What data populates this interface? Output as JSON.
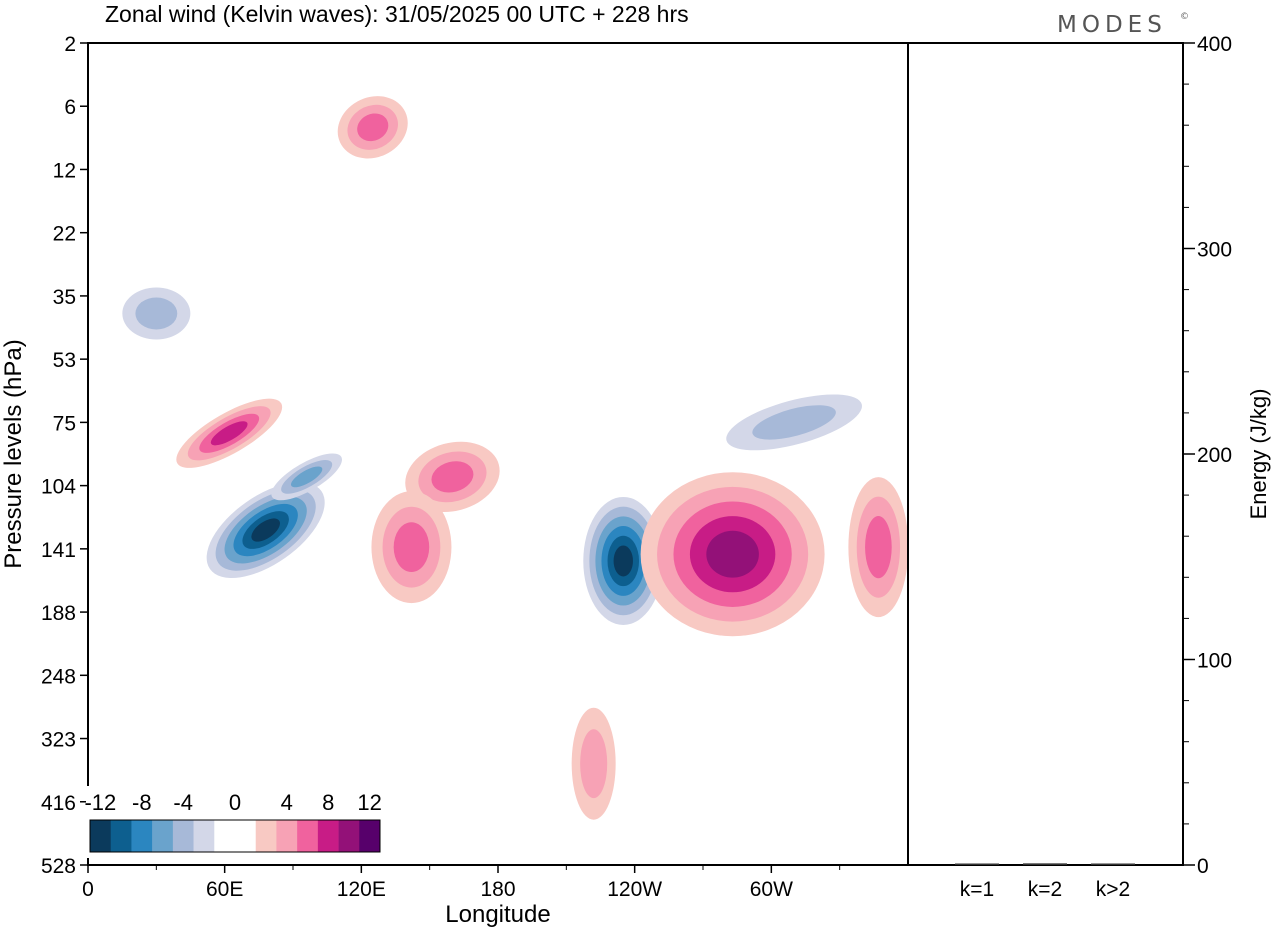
{
  "logo": {
    "text": "MODES",
    "mark": "©"
  },
  "colors": {
    "neg": [
      "#0b3a5c",
      "#0d5f8f",
      "#2b86c0",
      "#6aa3cc",
      "#a7b9d8",
      "#d3d7e8"
    ],
    "pos": [
      "#f8c9c3",
      "#f7a2b5",
      "#f0629e",
      "#c81c86",
      "#931178",
      "#57006b"
    ]
  },
  "chart_data": [
    {
      "type": "heatmap",
      "title": "Zonal wind (Kelvin waves):  31/05/2025  00 UTC  + 228 hrs",
      "xlabel": "Longitude",
      "ylabel": "Pressure levels (hPa)",
      "x_ticks": [
        "0",
        "60E",
        "120E",
        "180",
        "120W",
        "60W"
      ],
      "x_tick_values": [
        0,
        60,
        120,
        180,
        240,
        300
      ],
      "x_range": [
        0,
        360
      ],
      "y_ticks": [
        "2",
        "6",
        "12",
        "22",
        "35",
        "53",
        "75",
        "104",
        "141",
        "188",
        "248",
        "323",
        "416",
        "528"
      ],
      "colorbar": {
        "tick_labels": [
          "-12",
          "-8",
          "-4",
          "0",
          "4",
          "8",
          "12"
        ],
        "levels": [
          -14,
          -12,
          -10,
          -8,
          -6,
          -4,
          -2,
          2,
          4,
          6,
          8,
          10,
          12,
          14
        ]
      },
      "features": [
        {
          "sign": "neg",
          "lon": 78,
          "level": 130,
          "peak": -13
        },
        {
          "sign": "neg",
          "lon": 96,
          "level": 100,
          "peak": -5
        },
        {
          "sign": "neg",
          "lon": 235,
          "level": 150,
          "peak": -12
        },
        {
          "sign": "neg",
          "lon": 30,
          "level": 40,
          "peak": -3
        },
        {
          "sign": "neg",
          "lon": 310,
          "level": 75,
          "peak": -3
        },
        {
          "sign": "pos",
          "lon": 62,
          "level": 80,
          "peak": 7
        },
        {
          "sign": "pos",
          "lon": 160,
          "level": 100,
          "peak": 6
        },
        {
          "sign": "pos",
          "lon": 142,
          "level": 140,
          "peak": 5
        },
        {
          "sign": "pos",
          "lon": 283,
          "level": 145,
          "peak": 10
        },
        {
          "sign": "pos",
          "lon": 347,
          "level": 140,
          "peak": 6
        },
        {
          "sign": "pos",
          "lon": 222,
          "level": 360,
          "peak": 3
        },
        {
          "sign": "pos",
          "lon": 125,
          "level": 8,
          "peak": 6
        }
      ]
    },
    {
      "type": "bar",
      "categories": [
        "k=1",
        "k=2",
        "k>2"
      ],
      "values": [
        0.6,
        0.8,
        0.6
      ],
      "ylabel": "Energy (J/kg)",
      "ylim": [
        0,
        400
      ],
      "y_ticks": [
        "0",
        "100",
        "200",
        "300",
        "400"
      ]
    }
  ]
}
